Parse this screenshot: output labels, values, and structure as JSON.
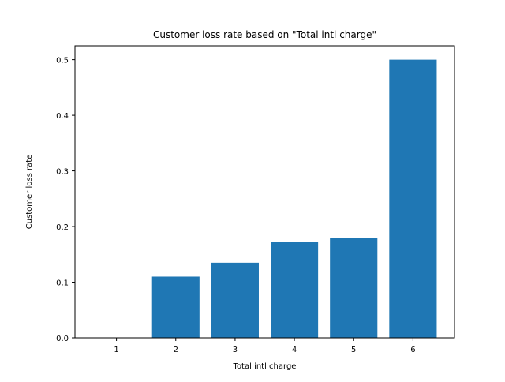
{
  "chart_data": {
    "type": "bar",
    "title": "Customer loss rate based on \"Total intl charge\"",
    "xlabel": "Total intl charge",
    "ylabel": "Customer loss rate",
    "categories": [
      "1",
      "2",
      "3",
      "4",
      "5",
      "6"
    ],
    "values": [
      0.0,
      0.11,
      0.135,
      0.172,
      0.179,
      0.5
    ],
    "ylim": [
      0,
      0.525
    ],
    "yticks": [
      "0.0",
      "0.1",
      "0.2",
      "0.3",
      "0.4",
      "0.5"
    ],
    "grid": false,
    "legend": "none",
    "bar_color": "#1f77b4"
  }
}
